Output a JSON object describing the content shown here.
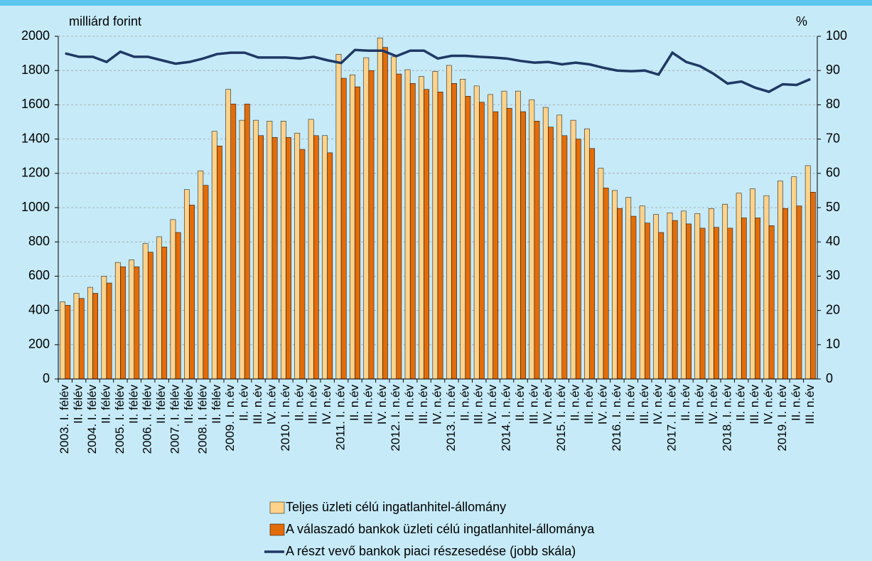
{
  "chart_data": {
    "type": "bar-line",
    "y_label": "milliárd forint",
    "y2_label": "%",
    "categories": [
      "2003. I. félév",
      "II. félév",
      "2004. I. félév",
      "II. félév",
      "2005. I. félév",
      "II. félév",
      "2006. I. félév",
      "II. félév",
      "2007. I. félév",
      "II. félév",
      "2008. I. félév",
      "II. félév",
      "2009. I. n.év",
      "II. n.év",
      "III. n.év",
      "IV. n.év",
      "2010. I. n.év",
      "II. n.év",
      "III. n.év",
      "IV. n.év",
      "2011. I. n.év",
      "II. n.év",
      "III. n.év",
      "IV. n.év",
      "2012. I. n.év",
      "II. n.év",
      "III. n.év",
      "IV. n.év",
      "2013. I. n.év",
      "II. n.év",
      "III. n.év",
      "IV. n.év",
      "2014. I. n.év",
      "II. n.év",
      "III. n.év",
      "IV. n.év",
      "2015. I. n.év",
      "II. n.év",
      "III. n.év",
      "IV. n.év",
      "2016. I. n.év",
      "II. n.év",
      "III. n.év",
      "IV. n.év",
      "2017. I. n.év",
      "II. n.év",
      "III. n.év",
      "IV. n.év",
      "2018. I. n.év",
      "II. n.év",
      "III. n.év",
      "IV. n.év",
      "2019. I. n.év",
      "II. n.év",
      "III. n.év"
    ],
    "series": [
      {
        "name": "Teljes üzleti célú ingatlanhitel-állomány",
        "type": "bar",
        "color": "#fdd28a",
        "values": [
          450,
          500,
          535,
          600,
          680,
          695,
          790,
          830,
          930,
          1105,
          1215,
          1445,
          1690,
          1510,
          1510,
          1505,
          1505,
          1435,
          1515,
          1420,
          1895,
          1775,
          1875,
          1990,
          1880,
          1805,
          1765,
          1795,
          1830,
          1750,
          1710,
          1660,
          1680,
          1680,
          1630,
          1585,
          1540,
          1510,
          1460,
          1230,
          1100,
          1060,
          1010,
          960,
          970,
          980,
          965,
          995,
          1020,
          1085,
          1110,
          1070,
          1155,
          1180,
          1245
        ]
      },
      {
        "name": "A válaszadó bankok üzleti célú ingatlanhitel-állománya",
        "type": "bar",
        "color": "#e36c0a",
        "values": [
          430,
          470,
          500,
          560,
          655,
          655,
          740,
          770,
          855,
          1015,
          1130,
          1360,
          1605,
          1605,
          1420,
          1410,
          1410,
          1340,
          1420,
          1320,
          1755,
          1705,
          1800,
          1935,
          1780,
          1725,
          1690,
          1675,
          1725,
          1650,
          1615,
          1560,
          1580,
          1560,
          1505,
          1470,
          1420,
          1400,
          1345,
          1115,
          995,
          950,
          910,
          855,
          925,
          905,
          880,
          885,
          880,
          940,
          940,
          895,
          995,
          1010,
          1090
        ]
      },
      {
        "name": "A részt vevő bankok piaci részesedése (jobb skála)",
        "type": "line",
        "axis": "y2",
        "color": "#1f3864",
        "values": [
          95,
          94,
          94,
          92.5,
          95.5,
          94,
          94,
          93,
          92,
          92.5,
          93.5,
          94.8,
          95.2,
          95.2,
          93.8,
          93.8,
          93.8,
          93.5,
          94,
          93,
          92.2,
          96,
          95.8,
          95.8,
          94.2,
          95.8,
          95.8,
          93.5,
          94.3,
          94.3,
          94,
          93.8,
          93.5,
          92.8,
          92.3,
          92.5,
          91.8,
          92.3,
          91.8,
          90.8,
          90,
          89.8,
          90,
          88.8,
          95.2,
          92.5,
          91.3,
          89,
          86.2,
          86.8,
          85,
          83.8,
          86,
          85.8,
          87.5
        ]
      }
    ],
    "ylim": [
      0,
      2000
    ],
    "yticks": [
      0,
      200,
      400,
      600,
      800,
      1000,
      1200,
      1400,
      1600,
      1800,
      2000
    ],
    "y2lim": [
      0,
      100
    ],
    "y2ticks": [
      0,
      10,
      20,
      30,
      40,
      50,
      60,
      70,
      80,
      90,
      100
    ],
    "grid": true
  }
}
